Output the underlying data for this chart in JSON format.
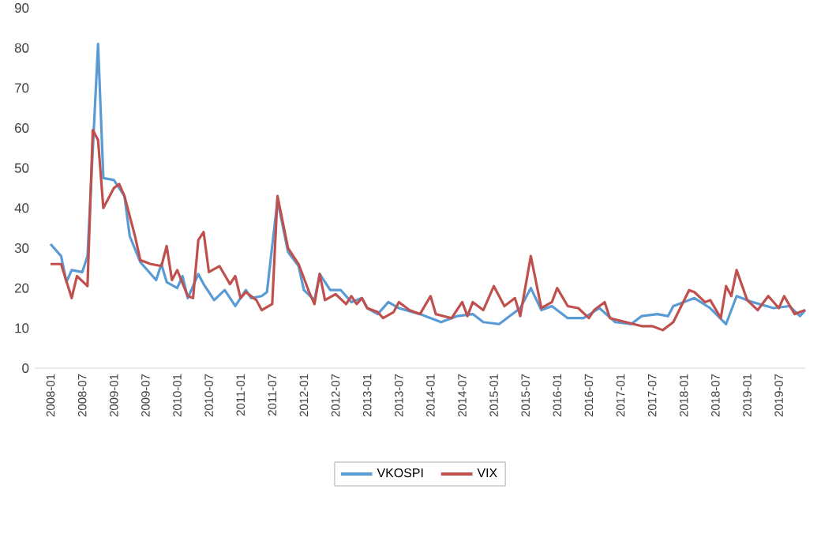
{
  "chart_data": {
    "type": "line",
    "xlim": [
      "2007-10",
      "2019-12"
    ],
    "xticks": [
      "2008-01",
      "2008-07",
      "2009-01",
      "2009-07",
      "2010-01",
      "2010-07",
      "2011-01",
      "2011-07",
      "2012-01",
      "2012-07",
      "2013-01",
      "2013-07",
      "2014-01",
      "2014-07",
      "2015-01",
      "2015-07",
      "2016-01",
      "2016-07",
      "2017-01",
      "2017-07",
      "2018-01",
      "2018-07",
      "2019-01",
      "2019-07"
    ],
    "ylim": [
      0,
      90
    ],
    "yticks": [
      0,
      10,
      20,
      30,
      40,
      50,
      60,
      70,
      80,
      90
    ],
    "legend": "bottom",
    "series": [
      {
        "name": "VKOSPI",
        "color": "#5b9bd5",
        "x": [
          "2008-01",
          "2008-03",
          "2008-04",
          "2008-05",
          "2008-07",
          "2008-08",
          "2008-10",
          "2008-11",
          "2009-01",
          "2009-03",
          "2009-04",
          "2009-06",
          "2009-09",
          "2009-10",
          "2009-11",
          "2010-01",
          "2010-02",
          "2010-03",
          "2010-05",
          "2010-06",
          "2010-08",
          "2010-10",
          "2010-12",
          "2011-02",
          "2011-03",
          "2011-05",
          "2011-06",
          "2011-08",
          "2011-10",
          "2011-12",
          "2012-01",
          "2012-03",
          "2012-04",
          "2012-06",
          "2012-08",
          "2012-10",
          "2012-12",
          "2013-01",
          "2013-03",
          "2013-05",
          "2013-07",
          "2013-11",
          "2014-03",
          "2014-06",
          "2014-09",
          "2014-11",
          "2015-02",
          "2015-06",
          "2015-08",
          "2015-10",
          "2015-12",
          "2016-03",
          "2016-06",
          "2016-09",
          "2016-12",
          "2017-03",
          "2017-05",
          "2017-08",
          "2017-10",
          "2017-11",
          "2018-03",
          "2018-06",
          "2018-09",
          "2018-11",
          "2019-02",
          "2019-06",
          "2019-09",
          "2019-11",
          "2019-12"
        ],
        "values": [
          31,
          28,
          21.5,
          24.5,
          24,
          28,
          81,
          47.5,
          47,
          43,
          33,
          26.5,
          22,
          26,
          21.5,
          20,
          23,
          17.5,
          23.5,
          21,
          17,
          19.5,
          15.5,
          19.5,
          17.5,
          18,
          19,
          42,
          29,
          25.5,
          19.5,
          17,
          23.5,
          19.5,
          19.5,
          16.5,
          17.5,
          15,
          13.5,
          16.5,
          15,
          13.5,
          11.5,
          13,
          13.5,
          11.5,
          11,
          15,
          20,
          14.5,
          15.5,
          12.5,
          12.5,
          15,
          11.5,
          11,
          13,
          13.5,
          13,
          15.5,
          17.5,
          15,
          11,
          18,
          16.5,
          15,
          15.5,
          13,
          14.5
        ]
      },
      {
        "name": "VIX",
        "color": "#c0504d",
        "x": [
          "2008-01",
          "2008-03",
          "2008-05",
          "2008-06",
          "2008-08",
          "2008-09",
          "2008-10",
          "2008-11",
          "2009-01",
          "2009-02",
          "2009-03",
          "2009-05",
          "2009-06",
          "2009-08",
          "2009-10",
          "2009-11",
          "2009-12",
          "2010-01",
          "2010-03",
          "2010-04",
          "2010-05",
          "2010-06",
          "2010-07",
          "2010-09",
          "2010-11",
          "2010-12",
          "2011-01",
          "2011-02",
          "2011-04",
          "2011-05",
          "2011-07",
          "2011-08",
          "2011-10",
          "2011-12",
          "2012-02",
          "2012-03",
          "2012-04",
          "2012-05",
          "2012-07",
          "2012-09",
          "2012-10",
          "2012-11",
          "2012-12",
          "2013-01",
          "2013-03",
          "2013-04",
          "2013-06",
          "2013-07",
          "2013-09",
          "2013-11",
          "2014-01",
          "2014-02",
          "2014-05",
          "2014-07",
          "2014-08",
          "2014-09",
          "2014-11",
          "2015-01",
          "2015-03",
          "2015-05",
          "2015-06",
          "2015-08",
          "2015-09",
          "2015-10",
          "2015-12",
          "2016-01",
          "2016-03",
          "2016-05",
          "2016-07",
          "2016-08",
          "2016-10",
          "2016-11",
          "2017-02",
          "2017-05",
          "2017-07",
          "2017-09",
          "2017-11",
          "2018-02",
          "2018-03",
          "2018-05",
          "2018-06",
          "2018-08",
          "2018-09",
          "2018-10",
          "2018-11",
          "2019-01",
          "2019-03",
          "2019-05",
          "2019-07",
          "2019-08",
          "2019-10",
          "2019-12"
        ],
        "values": [
          26,
          26,
          17.5,
          23,
          20.5,
          59.5,
          57,
          40,
          45,
          46,
          43,
          33,
          27,
          26,
          25.5,
          30.5,
          22,
          24.5,
          18,
          17.5,
          32,
          34,
          24,
          25.5,
          21,
          23,
          17.5,
          19,
          17,
          14.5,
          16,
          43,
          30,
          26,
          19,
          16,
          23.5,
          17,
          18.5,
          16,
          18,
          16,
          17.5,
          15,
          14,
          12.5,
          14,
          16.5,
          14.5,
          13.5,
          18,
          13.5,
          12.5,
          16.5,
          13,
          16.5,
          14.5,
          20.5,
          15.5,
          17.5,
          13,
          28,
          21.5,
          15,
          16.5,
          20,
          15.5,
          15,
          12.5,
          14.5,
          16.5,
          12.5,
          11.5,
          10.5,
          10.5,
          9.5,
          11.5,
          19.5,
          19,
          16.5,
          17,
          12.5,
          20.5,
          18,
          24.5,
          17,
          14.5,
          18,
          15,
          18,
          13.5,
          14.5
        ]
      }
    ]
  }
}
